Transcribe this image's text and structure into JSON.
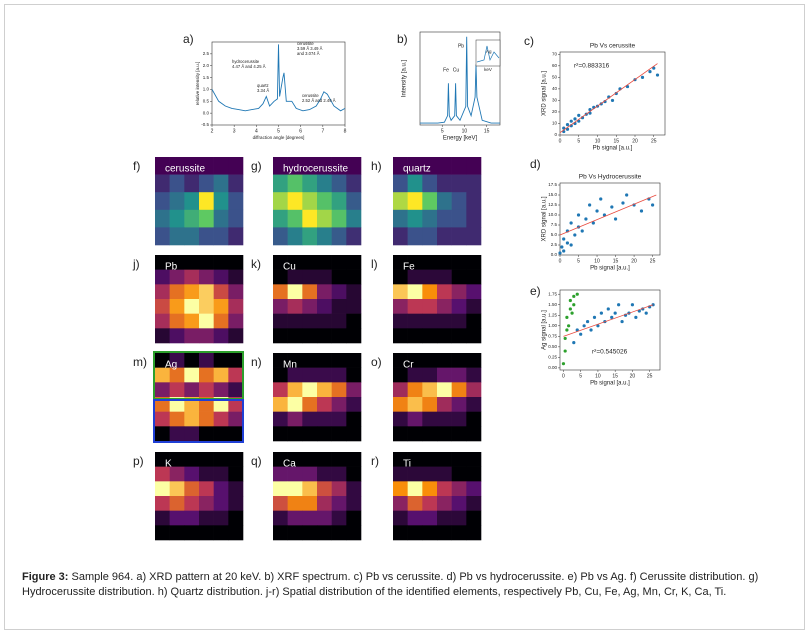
{
  "figure": {
    "a": {
      "label": "a)",
      "type": "line",
      "xlabel": "diffraction angle [degrees]",
      "ylabel": "relative intensity [a.u.]",
      "xlim": [
        2,
        8
      ],
      "xticks": [
        2,
        3,
        4,
        5,
        6,
        7,
        8
      ],
      "ylim": [
        -0.5,
        3
      ],
      "yticks": [
        {
          "value": -0.5,
          "label": "-0.5"
        },
        {
          "value": 0,
          "label": "0.0"
        },
        {
          "value": 0.5,
          "label": "0.5"
        },
        {
          "value": 1,
          "label": "1.0"
        },
        {
          "value": 1.5,
          "label": "1.5"
        },
        {
          "value": 2,
          "label": "2.0"
        },
        {
          "value": 2.5,
          "label": "2.5"
        }
      ],
      "color": "#1f77b4",
      "x": [
        2,
        2.3,
        2.6,
        2.9,
        3.2,
        3.5,
        3.8,
        4.1,
        4.3,
        4.45,
        4.6,
        4.8,
        4.95,
        5.0,
        5.05,
        5.2,
        5.25,
        5.35,
        5.6,
        5.8,
        6.1,
        6.4,
        6.7,
        6.9,
        7.05,
        7.2,
        7.5,
        7.8,
        8
      ],
      "y": [
        1.0,
        0.5,
        0.3,
        0.2,
        0.15,
        0.1,
        0.15,
        0.2,
        0.4,
        0.7,
        0.3,
        0.5,
        0.6,
        2.9,
        0.7,
        1.5,
        1.7,
        0.5,
        0.5,
        0.2,
        0.1,
        0.15,
        0.3,
        0.6,
        0.9,
        0.8,
        0.3,
        0.1,
        0.2
      ],
      "annotations": [
        [
          "hydrocerussite",
          "4.47 Å and 4.25 Å"
        ],
        [
          "quartz",
          "3.34 Å"
        ],
        [
          "cerussite",
          "3.59 Å  3.49 Å",
          "and 3.074 Å"
        ],
        [
          "cerussite",
          "2.52 Å and 2.49 Å"
        ]
      ]
    },
    "b": {
      "label": "b)",
      "type": "line",
      "xlabel": "Energy [keV]",
      "ylabel": "Intensity [a.u.]",
      "xlim": [
        0,
        18
      ],
      "xticks": [
        5,
        10,
        15
      ],
      "ylim": [
        0,
        1
      ],
      "color": "#1f77b4",
      "x": [
        0,
        2,
        4,
        5.5,
        6.2,
        6.4,
        6.6,
        7,
        7.8,
        8.0,
        8.2,
        9,
        10.3,
        10.5,
        10.7,
        11.5,
        12.4,
        12.6,
        12.8,
        14,
        16,
        18
      ],
      "y": [
        0.02,
        0.02,
        0.02,
        0.03,
        0.1,
        0.45,
        0.1,
        0.05,
        0.1,
        0.45,
        0.1,
        0.05,
        0.2,
        0.95,
        0.2,
        0.1,
        0.3,
        0.65,
        0.3,
        0.05,
        0.02,
        0.02
      ],
      "peaks": [
        "Fe",
        "Cu",
        "Pb"
      ],
      "inset": [
        "Ag",
        "keV"
      ]
    },
    "c": {
      "label": "c)",
      "type": "scatter",
      "title": "Pb Vs cerussite",
      "xlabel": "Pb signal [a.u.]",
      "ylabel": "XRD signal [a.u.]",
      "annotation": "r²=0.883316",
      "xlim": [
        0,
        28
      ],
      "xticks": [
        0,
        5,
        10,
        15,
        20,
        25
      ],
      "ylim": [
        0,
        72
      ],
      "yticks": [
        0,
        10,
        20,
        30,
        40,
        50,
        60,
        70
      ],
      "series": [
        {
          "color": "#1f77b4",
          "x": [
            1,
            1,
            2,
            2,
            3,
            3,
            4,
            4,
            5,
            5,
            6,
            7,
            8,
            8,
            9,
            10,
            11,
            12,
            13,
            14,
            15,
            16,
            18,
            20,
            22,
            24,
            25,
            26
          ],
          "y": [
            3,
            6,
            5,
            9,
            8,
            12,
            10,
            14,
            12,
            17,
            15,
            18,
            22,
            19,
            24,
            25,
            27,
            29,
            33,
            30,
            36,
            40,
            42,
            48,
            50,
            55,
            58,
            52
          ]
        }
      ],
      "fit": {
        "color": "#e8493d",
        "x": [
          0,
          26
        ],
        "y": [
          2,
          62
        ]
      }
    },
    "d": {
      "label": "d)",
      "type": "scatter",
      "title": "Pb Vs Hydrocerussite",
      "xlabel": "Pb signal [a.u.]",
      "ylabel": "XRD signal [a.u.]",
      "xlim": [
        0,
        27
      ],
      "xticks": [
        0,
        5,
        10,
        15,
        20,
        25
      ],
      "ylim": [
        0,
        18
      ],
      "yticks": [
        {
          "value": 0,
          "label": "0.0"
        },
        {
          "value": 2.5,
          "label": "2.5"
        },
        {
          "value": 5,
          "label": "5.0"
        },
        {
          "value": 7.5,
          "label": "7.5"
        },
        {
          "value": 10,
          "label": "10.0"
        },
        {
          "value": 12.5,
          "label": "12.5"
        },
        {
          "value": 15,
          "label": "15.0"
        },
        {
          "value": 17.5,
          "label": "17.5"
        }
      ],
      "series": [
        {
          "color": "#1f77b4",
          "x": [
            0,
            0.5,
            1,
            1,
            2,
            2,
            3,
            3,
            4,
            5,
            5,
            6,
            7,
            8,
            9,
            10,
            11,
            12,
            14,
            15,
            17,
            18,
            20,
            22,
            24,
            25
          ],
          "y": [
            0.5,
            2,
            1,
            4,
            3,
            6,
            2.5,
            8,
            5,
            7,
            10,
            6,
            9,
            12.5,
            8,
            11,
            14,
            10,
            12,
            9,
            13,
            15,
            12.5,
            11,
            14,
            12.5
          ]
        }
      ],
      "fit": {
        "color": "#e8493d",
        "x": [
          0,
          26
        ],
        "y": [
          5,
          15
        ]
      }
    },
    "e": {
      "label": "e)",
      "type": "scatter",
      "xlabel": "Pb signal [a.u.]",
      "ylabel": "Ag signal [a.u.]",
      "annotation": "r²=0.545026",
      "xlim": [
        -1,
        28
      ],
      "xticks": [
        0,
        5,
        10,
        15,
        20,
        25
      ],
      "ylim": [
        -0.05,
        1.85
      ],
      "yticks": [
        {
          "value": 0,
          "label": "0.00"
        },
        {
          "value": 0.25,
          "label": "0.25"
        },
        {
          "value": 0.5,
          "label": "0.50"
        },
        {
          "value": 0.75,
          "label": "0.75"
        },
        {
          "value": 1,
          "label": "1.00"
        },
        {
          "value": 1.25,
          "label": "1.25"
        },
        {
          "value": 1.5,
          "label": "1.50"
        },
        {
          "value": 1.75,
          "label": "1.75"
        }
      ],
      "series": [
        {
          "color": "#1f77b4",
          "x": [
            3,
            4,
            5,
            6,
            7,
            8,
            9,
            10,
            11,
            12,
            13,
            14,
            15,
            16,
            17,
            18,
            19,
            20,
            21,
            22,
            23,
            24,
            25,
            26
          ],
          "y": [
            0.6,
            0.9,
            0.8,
            1.0,
            1.1,
            0.9,
            1.2,
            1.0,
            1.3,
            1.1,
            1.4,
            1.2,
            1.3,
            1.5,
            1.1,
            1.25,
            1.3,
            1.5,
            1.2,
            1.35,
            1.4,
            1.3,
            1.45,
            1.5
          ]
        },
        {
          "color": "#2ca02c",
          "x": [
            0,
            0.5,
            0.5,
            1,
            1,
            1.5,
            2,
            2,
            2.5,
            3,
            3,
            4
          ],
          "y": [
            0.1,
            0.4,
            0.7,
            0.9,
            1.2,
            1.0,
            1.4,
            1.6,
            1.3,
            1.7,
            1.5,
            1.75
          ]
        }
      ],
      "fit": {
        "color": "#e8493d",
        "x": [
          0,
          26
        ],
        "y": [
          0.75,
          1.5
        ]
      }
    },
    "maps": [
      {
        "label": "f)",
        "title": "cerussite",
        "colormap": "viridis",
        "grid": [
          [
            0.1,
            0.1,
            0.1,
            0.1,
            0.1,
            0.1
          ],
          [
            0.2,
            0.3,
            0.2,
            0.3,
            0.4,
            0.2
          ],
          [
            0.3,
            0.4,
            0.5,
            0.9,
            0.5,
            0.3
          ],
          [
            0.4,
            0.5,
            0.6,
            0.7,
            0.4,
            0.3
          ],
          [
            0.3,
            0.4,
            0.4,
            0.3,
            0.3,
            0.2
          ]
        ]
      },
      {
        "label": "g)",
        "title": "hydrocerussite",
        "colormap": "viridis",
        "grid": [
          [
            0.1,
            0.1,
            0.1,
            0.1,
            0.1,
            0.1
          ],
          [
            0.5,
            0.6,
            0.5,
            0.4,
            0.3,
            0.2
          ],
          [
            0.7,
            0.8,
            0.7,
            0.6,
            0.5,
            0.3
          ],
          [
            0.5,
            0.6,
            0.8,
            0.7,
            0.6,
            0.4
          ],
          [
            0.3,
            0.4,
            0.5,
            0.4,
            0.3,
            0.2
          ]
        ]
      },
      {
        "label": "h)",
        "title": "quartz",
        "colormap": "viridis",
        "grid": [
          [
            0.1,
            0.1,
            0.1,
            0.1,
            0.1,
            0.1
          ],
          [
            0.3,
            0.5,
            0.3,
            0.2,
            0.2,
            0.2
          ],
          [
            0.8,
            0.9,
            0.7,
            0.4,
            0.3,
            0.2
          ],
          [
            0.4,
            0.5,
            0.4,
            0.3,
            0.3,
            0.2
          ],
          [
            0.2,
            0.3,
            0.3,
            0.2,
            0.2,
            0.2
          ]
        ]
      },
      {
        "label": "j)",
        "title": "Pb",
        "colormap": "inferno",
        "grid": [
          [
            0,
            0,
            0,
            0,
            0,
            0
          ],
          [
            0.2,
            0.3,
            0.4,
            0.3,
            0.2,
            0.1
          ],
          [
            0.4,
            0.6,
            0.7,
            0.8,
            0.5,
            0.3
          ],
          [
            0.5,
            0.7,
            0.9,
            0.8,
            0.7,
            0.4
          ],
          [
            0.4,
            0.6,
            0.7,
            0.9,
            0.6,
            0.3
          ],
          [
            0.1,
            0.2,
            0.3,
            0.3,
            0.2,
            0.1
          ]
        ]
      },
      {
        "label": "k)",
        "title": "Cu",
        "colormap": "inferno",
        "grid": [
          [
            0,
            0,
            0,
            0,
            0,
            0
          ],
          [
            0,
            0.1,
            0.1,
            0.1,
            0,
            0
          ],
          [
            0.6,
            0.9,
            0.6,
            0.3,
            0.2,
            0.1
          ],
          [
            0.3,
            0.4,
            0.3,
            0.2,
            0.1,
            0.1
          ],
          [
            0.1,
            0.1,
            0.1,
            0.1,
            0.1,
            0
          ],
          [
            0,
            0,
            0,
            0,
            0,
            0
          ]
        ]
      },
      {
        "label": "l)",
        "title": "Fe",
        "colormap": "inferno",
        "grid": [
          [
            0,
            0,
            0,
            0,
            0,
            0
          ],
          [
            0,
            0.1,
            0.1,
            0.1,
            0,
            0
          ],
          [
            0.7,
            0.8,
            0.6,
            0.4,
            0.3,
            0.2
          ],
          [
            0.3,
            0.4,
            0.4,
            0.3,
            0.2,
            0.1
          ],
          [
            0.1,
            0.1,
            0.1,
            0.1,
            0.1,
            0
          ],
          [
            0,
            0,
            0,
            0,
            0,
            0
          ]
        ]
      },
      {
        "label": "m)",
        "title": "Ag",
        "colormap": "inferno",
        "grid": [
          [
            0.3,
            0.4,
            0.3,
            0.4,
            0.3,
            0.3
          ],
          [
            0.8,
            0.7,
            0.9,
            0.7,
            0.8,
            0.6
          ],
          [
            0.5,
            0.6,
            0.5,
            0.6,
            0.5,
            0.4
          ],
          [
            0.7,
            0.9,
            0.8,
            0.7,
            0.9,
            0.6
          ],
          [
            0.6,
            0.7,
            0.8,
            0.7,
            0.6,
            0.5
          ],
          [
            0.3,
            0.4,
            0.4,
            0.3,
            0.3,
            0.3
          ]
        ]
      },
      {
        "label": "n)",
        "title": "Mn",
        "colormap": "inferno",
        "grid": [
          [
            0,
            0,
            0,
            0,
            0,
            0
          ],
          [
            0,
            0.1,
            0.1,
            0.1,
            0.1,
            0
          ],
          [
            0.3,
            0.5,
            0.6,
            0.5,
            0.4,
            0.2
          ],
          [
            0.5,
            0.6,
            0.4,
            0.3,
            0.2,
            0.1
          ],
          [
            0.1,
            0.2,
            0.1,
            0.1,
            0.1,
            0
          ],
          [
            0,
            0,
            0,
            0,
            0,
            0
          ]
        ]
      },
      {
        "label": "o)",
        "title": "Cr",
        "colormap": "inferno",
        "grid": [
          [
            0,
            0,
            0,
            0,
            0,
            0
          ],
          [
            0,
            0.1,
            0.1,
            0.2,
            0.2,
            0.1
          ],
          [
            0.3,
            0.5,
            0.6,
            0.7,
            0.5,
            0.3
          ],
          [
            0.5,
            0.6,
            0.5,
            0.3,
            0.2,
            0.1
          ],
          [
            0.1,
            0.2,
            0.1,
            0.1,
            0.1,
            0
          ],
          [
            0,
            0,
            0,
            0,
            0,
            0
          ]
        ]
      },
      {
        "label": "p)",
        "title": "K",
        "colormap": "inferno",
        "grid": [
          [
            0,
            0,
            0,
            0,
            0,
            0
          ],
          [
            0.4,
            0.3,
            0.2,
            0.1,
            0.1,
            0
          ],
          [
            0.8,
            0.7,
            0.5,
            0.4,
            0.2,
            0.1
          ],
          [
            0.4,
            0.5,
            0.4,
            0.3,
            0.2,
            0.1
          ],
          [
            0.1,
            0.2,
            0.2,
            0.1,
            0.1,
            0
          ],
          [
            0,
            0,
            0,
            0,
            0,
            0
          ]
        ]
      },
      {
        "label": "q)",
        "title": "Ca",
        "colormap": "inferno",
        "grid": [
          [
            0,
            0,
            0,
            0,
            0,
            0
          ],
          [
            0.2,
            0.2,
            0.2,
            0.1,
            0.1,
            0
          ],
          [
            0.7,
            0.7,
            0.6,
            0.4,
            0.3,
            0.1
          ],
          [
            0.4,
            0.5,
            0.5,
            0.3,
            0.2,
            0.1
          ],
          [
            0.1,
            0.2,
            0.2,
            0.2,
            0.1,
            0
          ],
          [
            0,
            0,
            0,
            0,
            0,
            0
          ]
        ]
      },
      {
        "label": "r)",
        "title": "Ti",
        "colormap": "inferno",
        "grid": [
          [
            0,
            0,
            0,
            0,
            0,
            0
          ],
          [
            0.1,
            0.1,
            0.1,
            0.1,
            0,
            0
          ],
          [
            0.6,
            0.8,
            0.6,
            0.4,
            0.3,
            0.2
          ],
          [
            0.3,
            0.5,
            0.4,
            0.3,
            0.2,
            0.1
          ],
          [
            0.1,
            0.2,
            0.2,
            0.1,
            0.1,
            0
          ],
          [
            0,
            0,
            0,
            0,
            0,
            0
          ]
        ]
      }
    ]
  },
  "caption": {
    "label": "Figure 3:",
    "text": "Sample 964. a) XRD pattern at 20 keV. b) XRF spectrum. c) Pb vs cerussite. d) Pb vs hydrocerussite. e) Pb vs Ag. f) Cerussite distribution. g) Hydrocerussite distribution. h) Quartz distribution. j-r) Spatial distribution of the identified elements, respectively Pb, Cu, Fe, Ag, Mn, Cr, K, Ca, Ti."
  }
}
